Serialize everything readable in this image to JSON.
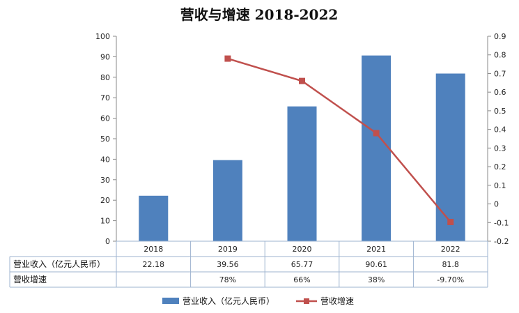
{
  "chart_data": {
    "type": "bar",
    "title": "营收与增速 2018-2022",
    "categories": [
      "2018",
      "2019",
      "2020",
      "2021",
      "2022"
    ],
    "series": [
      {
        "name": "营业收入（亿元人民币）",
        "type": "bar",
        "axis": "left",
        "values": [
          22.18,
          39.56,
          65.77,
          90.61,
          81.8
        ],
        "table_values": [
          "22.18",
          "39.56",
          "65.77",
          "90.61",
          "81.8"
        ]
      },
      {
        "name": "营收增速",
        "type": "line",
        "axis": "right",
        "values": [
          null,
          0.78,
          0.66,
          0.38,
          -0.097
        ],
        "table_values": [
          "",
          "78%",
          "66%",
          "38%",
          "-9.70%"
        ]
      }
    ],
    "y_left": {
      "min": 0,
      "max": 100,
      "step": 10,
      "tick_labels": [
        "0",
        "10",
        "20",
        "30",
        "40",
        "50",
        "60",
        "70",
        "80",
        "90",
        "100"
      ]
    },
    "y_right": {
      "min": -0.2,
      "max": 0.9,
      "step": 0.1,
      "tick_labels": [
        "-0.2",
        "-0.1",
        "0",
        "0.1",
        "0.2",
        "0.3",
        "0.4",
        "0.5",
        "0.6",
        "0.7",
        "0.8",
        "0.9"
      ]
    },
    "data_table": true,
    "legend_position": "bottom",
    "colors": {
      "bar": "#4f81bd",
      "line": "#c0504d",
      "grid": "#d0d0d0"
    }
  }
}
